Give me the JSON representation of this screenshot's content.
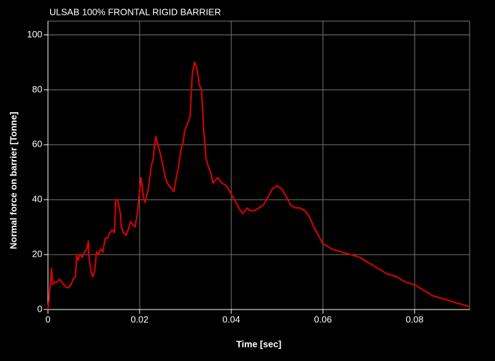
{
  "chart_data": {
    "type": "line",
    "title": "ULSAB 100% FRONTAL RIGID BARRIER",
    "xlabel": "Time [sec]",
    "ylabel": "Normal force on barrier [Tonne]",
    "color": "#e00000",
    "grid": true,
    "xlim": [
      0,
      0.092
    ],
    "xticks": [
      0,
      0.02,
      0.04,
      0.06,
      0.08
    ],
    "ylim": [
      0,
      105
    ],
    "yticks": [
      0,
      20,
      40,
      60,
      80,
      100
    ],
    "x": [
      0,
      0.0003,
      0.0008,
      0.001,
      0.0015,
      0.002,
      0.0025,
      0.003,
      0.0035,
      0.004,
      0.0045,
      0.005,
      0.0055,
      0.006,
      0.0063,
      0.0066,
      0.007,
      0.0075,
      0.008,
      0.0085,
      0.0088,
      0.009,
      0.0095,
      0.0098,
      0.0102,
      0.0106,
      0.011,
      0.0115,
      0.012,
      0.0125,
      0.013,
      0.0135,
      0.014,
      0.0145,
      0.0148,
      0.0152,
      0.0158,
      0.016,
      0.0165,
      0.017,
      0.0175,
      0.018,
      0.0185,
      0.019,
      0.0195,
      0.0198,
      0.0203,
      0.0206,
      0.0208,
      0.0212,
      0.0215,
      0.022,
      0.0225,
      0.023,
      0.0232,
      0.0235,
      0.024,
      0.0245,
      0.025,
      0.0255,
      0.026,
      0.0265,
      0.027,
      0.0275,
      0.028,
      0.0285,
      0.029,
      0.0295,
      0.0298,
      0.0305,
      0.031,
      0.0315,
      0.032,
      0.0325,
      0.033,
      0.0335,
      0.034,
      0.0345,
      0.035,
      0.0355,
      0.036,
      0.0365,
      0.037,
      0.0375,
      0.038,
      0.039,
      0.04,
      0.041,
      0.042,
      0.0425,
      0.043,
      0.0435,
      0.044,
      0.045,
      0.046,
      0.047,
      0.048,
      0.049,
      0.05,
      0.051,
      0.052,
      0.053,
      0.054,
      0.055,
      0.056,
      0.057,
      0.058,
      0.059,
      0.06,
      0.062,
      0.064,
      0.066,
      0.068,
      0.07,
      0.072,
      0.074,
      0.076,
      0.078,
      0.08,
      0.082,
      0.084,
      0.086,
      0.088,
      0.09,
      0.092
    ],
    "values": [
      0,
      5,
      15,
      9,
      10,
      10,
      11,
      10,
      9,
      8,
      8,
      9,
      11,
      12,
      20,
      18,
      20,
      19,
      21,
      22,
      25,
      18,
      13,
      12,
      14,
      21,
      20,
      22,
      21,
      26,
      26,
      28,
      29,
      28,
      40,
      40,
      35,
      30,
      28,
      27,
      29,
      32,
      31,
      30,
      35,
      40,
      48,
      45,
      41,
      39,
      41,
      45,
      52,
      55,
      59,
      63,
      60,
      57,
      53,
      49,
      46,
      45,
      44,
      43,
      48,
      52,
      58,
      61,
      65,
      68,
      70,
      86,
      90,
      88,
      82,
      80,
      65,
      55,
      52,
      50,
      46,
      47,
      48,
      47,
      46,
      45,
      42,
      39,
      36,
      35,
      36,
      37,
      36,
      36,
      37,
      38,
      41,
      44,
      45,
      44,
      41,
      38,
      37,
      37,
      36,
      34,
      30,
      27,
      24,
      22,
      21,
      20,
      19,
      17,
      15,
      13,
      12,
      10,
      9,
      7,
      5,
      4,
      3,
      2,
      1
    ]
  }
}
